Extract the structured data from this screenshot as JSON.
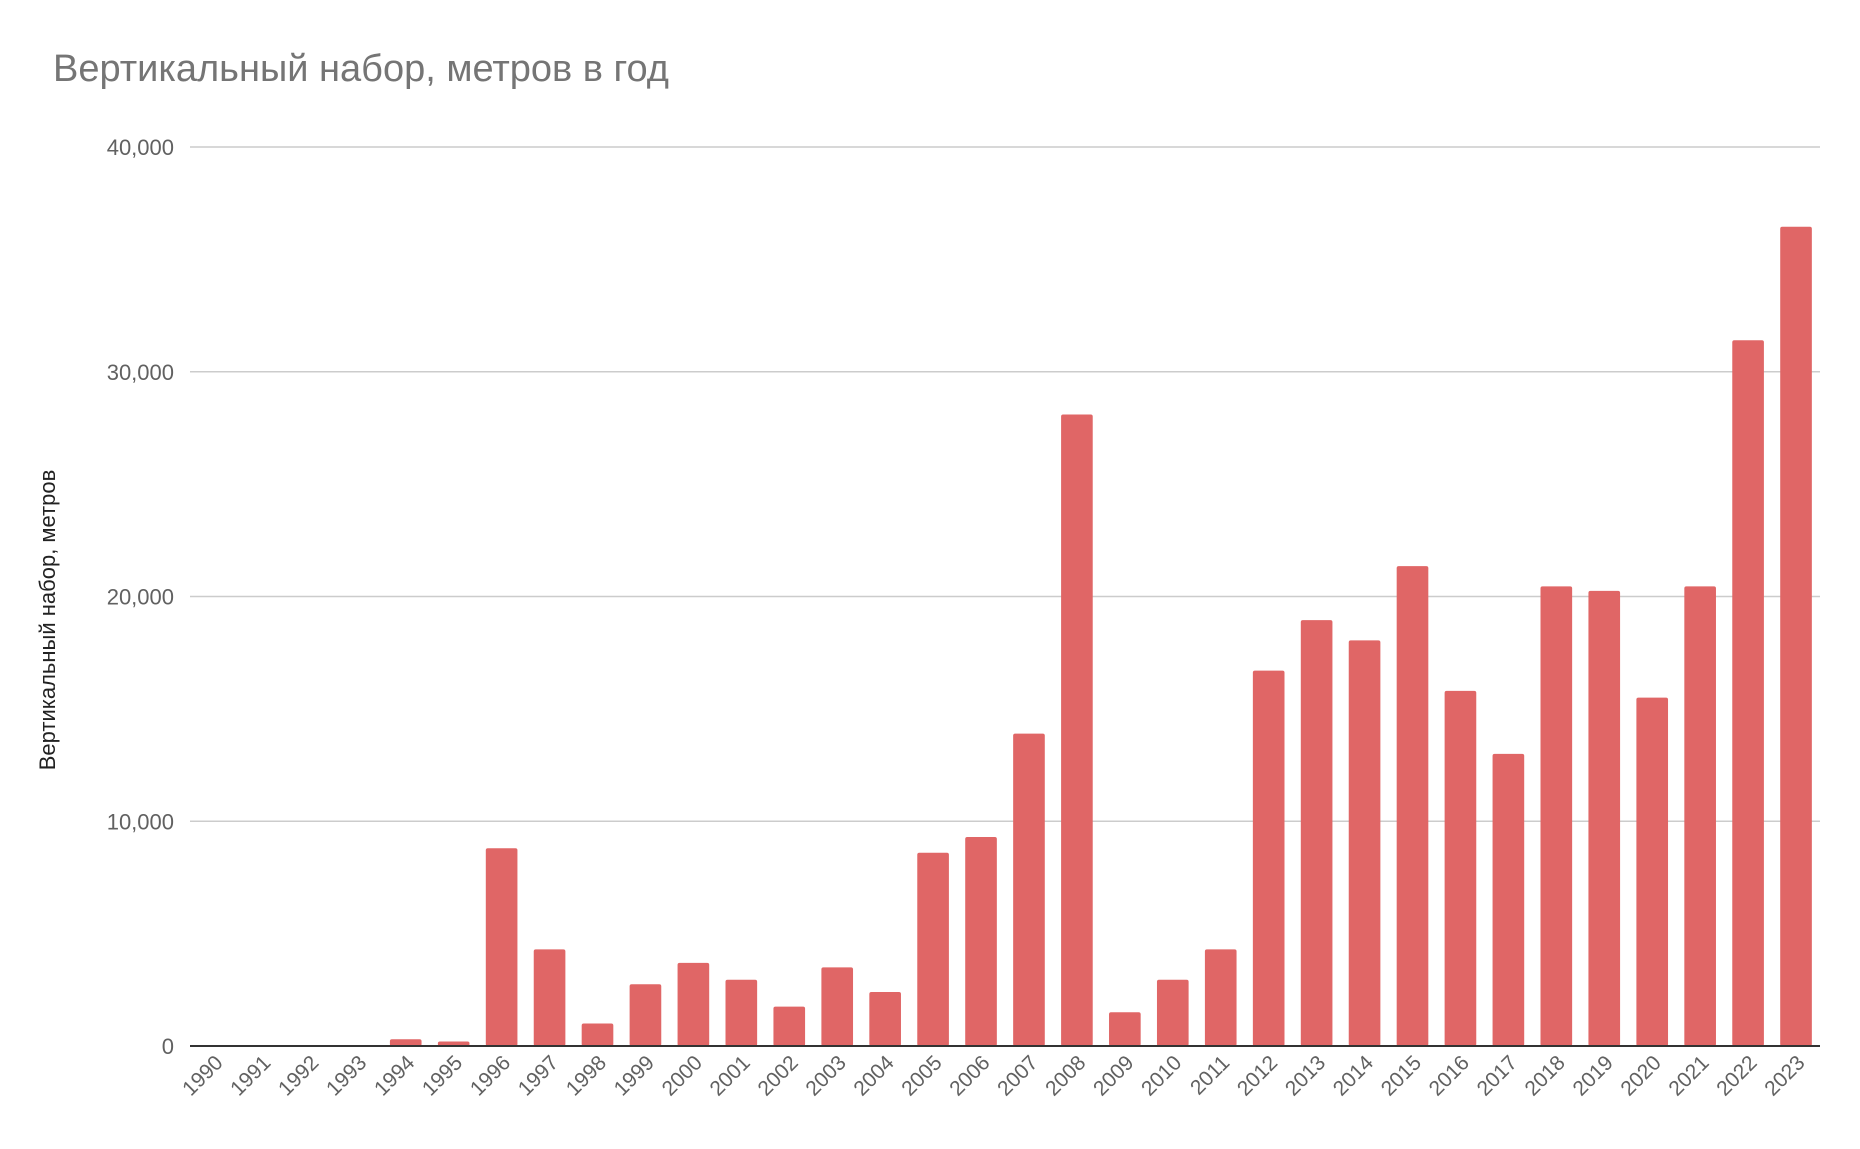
{
  "chart_data": {
    "type": "bar",
    "title": "Вертикальный набор, метров в год",
    "xlabel": "",
    "ylabel": "Вертикальный набор, метров",
    "categories": [
      "1990",
      "1991",
      "1992",
      "1993",
      "1994",
      "1995",
      "1996",
      "1997",
      "1998",
      "1999",
      "2000",
      "2001",
      "2002",
      "2003",
      "2004",
      "2005",
      "2006",
      "2007",
      "2008",
      "2009",
      "2010",
      "2011",
      "2012",
      "2013",
      "2014",
      "2015",
      "2016",
      "2017",
      "2018",
      "2019",
      "2020",
      "2021",
      "2022",
      "2023"
    ],
    "values": [
      0,
      0,
      0,
      0,
      300,
      200,
      8800,
      4300,
      1000,
      2750,
      3700,
      2950,
      1750,
      3500,
      2400,
      8600,
      9300,
      13900,
      28100,
      1500,
      2950,
      4300,
      16700,
      18950,
      18050,
      21350,
      15800,
      13000,
      20450,
      20250,
      15500,
      20450,
      31400,
      36450
    ],
    "y_ticks": [
      "0",
      "10,000",
      "20,000",
      "30,000",
      "40,000"
    ],
    "ylim": [
      0,
      40000
    ],
    "grid": true,
    "legend": "none",
    "bar_color": "#e06666",
    "grid_color": "#cccccc",
    "axis_color": "#333333",
    "text_color": "#616161"
  }
}
